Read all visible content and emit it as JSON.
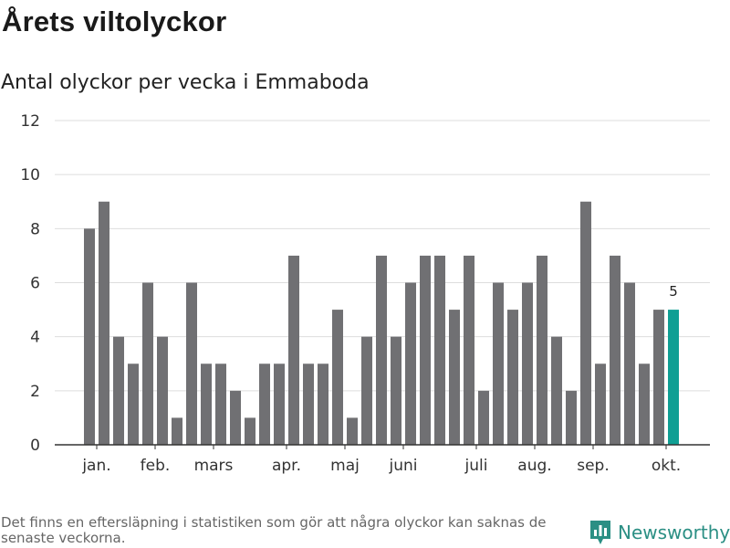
{
  "header": {
    "title": "Årets viltolyckor",
    "subtitle": "Antal olyckor per vecka i Emmaboda"
  },
  "footer": {
    "note": "Det finns en eftersläpning i statistiken som gör att några olyckor kan saknas de senaste veckorna.",
    "brand": "Newsworthy"
  },
  "colors": {
    "bar": "#707073",
    "highlight": "#0f9f94",
    "grid": "#dddddd",
    "axis": "#333333",
    "brand": "#2b8f84"
  },
  "icons": {
    "logo": "bar-chart-logo-icon"
  },
  "chart_data": {
    "type": "bar",
    "title": "Antal olyckor per vecka i Emmaboda",
    "xlabel": "",
    "ylabel": "",
    "ylim": [
      0,
      12
    ],
    "yticks": [
      0,
      2,
      4,
      6,
      8,
      10,
      12
    ],
    "weeks": [
      1,
      2,
      3,
      4,
      5,
      6,
      7,
      8,
      9,
      10,
      11,
      12,
      13,
      14,
      15,
      16,
      17,
      18,
      19,
      20,
      21,
      22,
      23,
      24,
      25,
      26,
      27,
      28,
      29,
      30,
      31,
      32,
      33,
      34,
      35,
      36,
      37,
      38,
      39,
      40,
      41
    ],
    "values": [
      8,
      9,
      4,
      3,
      6,
      4,
      1,
      6,
      3,
      3,
      2,
      1,
      3,
      3,
      7,
      3,
      3,
      5,
      1,
      4,
      7,
      4,
      6,
      7,
      7,
      5,
      7,
      2,
      6,
      5,
      6,
      7,
      4,
      2,
      9,
      3,
      7,
      6,
      3,
      5,
      5
    ],
    "highlight_index": 40,
    "highlight_label": "5",
    "month_labels": [
      {
        "label": "jan.",
        "week": 1.5
      },
      {
        "label": "feb.",
        "week": 5.5
      },
      {
        "label": "mars",
        "week": 9.5
      },
      {
        "label": "apr.",
        "week": 14.5
      },
      {
        "label": "maj",
        "week": 18.5
      },
      {
        "label": "juni",
        "week": 22.5
      },
      {
        "label": "juli",
        "week": 27.5
      },
      {
        "label": "aug.",
        "week": 31.5
      },
      {
        "label": "sep.",
        "week": 35.5
      },
      {
        "label": "okt.",
        "week": 40.5
      }
    ],
    "grid": true,
    "legend": "none"
  }
}
